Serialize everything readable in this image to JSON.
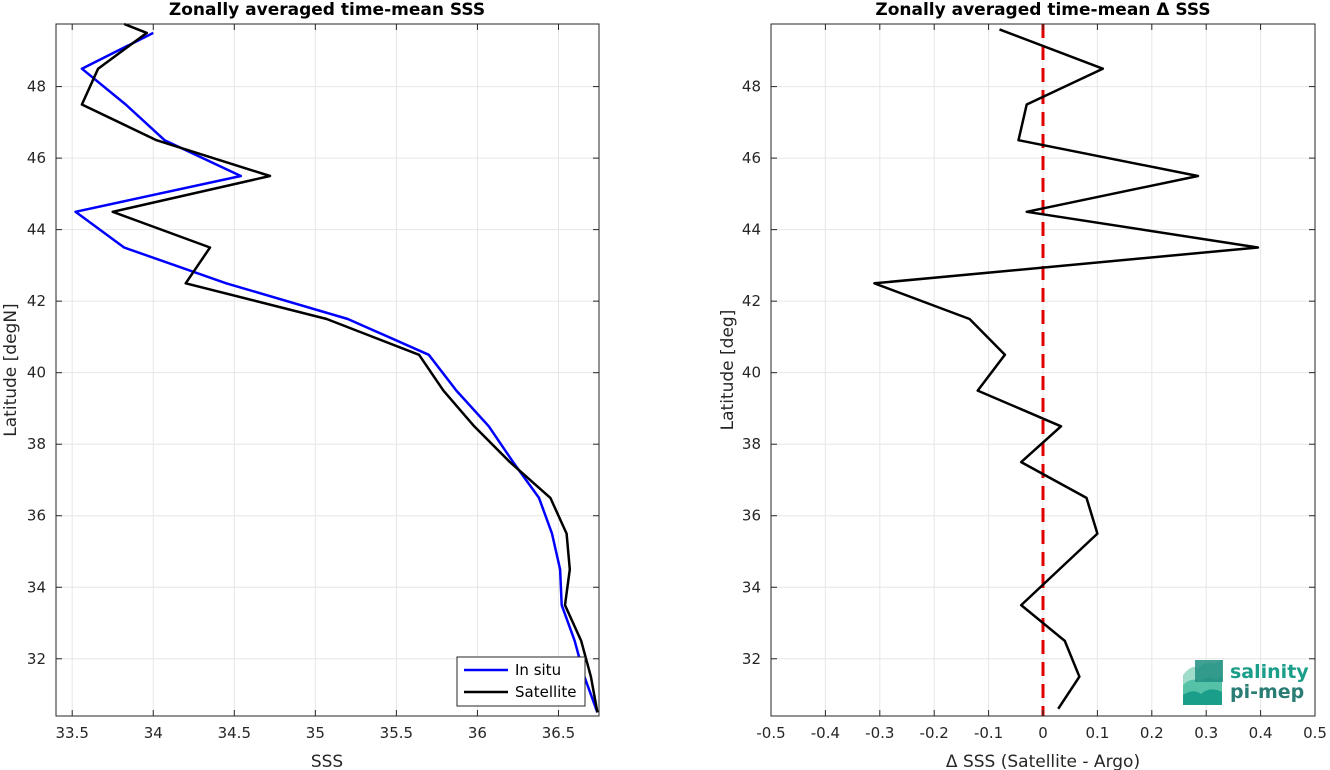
{
  "chart_data": [
    {
      "type": "line",
      "title": "Zonally averaged time-mean SSS",
      "xlabel": "SSS",
      "ylabel": "Latitude [degN]",
      "xlim": [
        33.4,
        36.75
      ],
      "ylim": [
        30.4,
        49.75
      ],
      "xticks": [
        33.5,
        34,
        34.5,
        35,
        35.5,
        36,
        36.5
      ],
      "xtick_labels": [
        "33.5",
        "34",
        "34.5",
        "35",
        "35.5",
        "36",
        "36.5"
      ],
      "yticks": [
        32,
        34,
        36,
        38,
        40,
        42,
        44,
        46,
        48
      ],
      "ytick_labels": [
        "32",
        "34",
        "36",
        "38",
        "40",
        "42",
        "44",
        "46",
        "48"
      ],
      "grid": true,
      "legend": "bottom-right",
      "series": [
        {
          "name": "In situ",
          "color": "#0000ff",
          "points": [
            [
              34.0,
              49.5
            ],
            [
              33.56,
              48.5
            ],
            [
              33.83,
              47.5
            ],
            [
              34.07,
              46.5
            ],
            [
              34.54,
              45.5
            ],
            [
              33.52,
              44.5
            ],
            [
              33.82,
              43.5
            ],
            [
              34.45,
              42.5
            ],
            [
              35.2,
              41.5
            ],
            [
              35.7,
              40.5
            ],
            [
              35.87,
              39.5
            ],
            [
              36.07,
              38.5
            ],
            [
              36.22,
              37.5
            ],
            [
              36.38,
              36.5
            ],
            [
              36.46,
              35.5
            ],
            [
              36.51,
              34.5
            ],
            [
              36.52,
              33.5
            ],
            [
              36.6,
              32.5
            ],
            [
              36.66,
              31.5
            ],
            [
              36.74,
              30.5
            ]
          ]
        },
        {
          "name": "Satellite",
          "color": "#000000",
          "points": [
            [
              33.82,
              49.75
            ],
            [
              33.96,
              49.5
            ],
            [
              33.66,
              48.5
            ],
            [
              33.56,
              47.5
            ],
            [
              34.02,
              46.5
            ],
            [
              34.72,
              45.5
            ],
            [
              33.75,
              44.5
            ],
            [
              34.35,
              43.5
            ],
            [
              34.2,
              42.5
            ],
            [
              35.07,
              41.5
            ],
            [
              35.64,
              40.5
            ],
            [
              35.79,
              39.5
            ],
            [
              35.98,
              38.5
            ],
            [
              36.2,
              37.5
            ],
            [
              36.45,
              36.5
            ],
            [
              36.55,
              35.5
            ],
            [
              36.57,
              34.5
            ],
            [
              36.54,
              33.5
            ],
            [
              36.64,
              32.5
            ],
            [
              36.7,
              31.5
            ],
            [
              36.74,
              30.5
            ]
          ]
        }
      ]
    },
    {
      "type": "line",
      "title": "Zonally averaged time-mean Δ SSS",
      "xlabel": "Δ SSS (Satellite - Argo)",
      "ylabel": "Latitude [deg]",
      "xlim": [
        -0.5,
        0.5
      ],
      "ylim": [
        30.4,
        49.75
      ],
      "xticks": [
        -0.5,
        -0.4,
        -0.3,
        -0.2,
        -0.1,
        0,
        0.1,
        0.2,
        0.3,
        0.4,
        0.5
      ],
      "xtick_labels": [
        "-0.5",
        "-0.4",
        "-0.3",
        "-0.2",
        "-0.1",
        "0",
        "0.1",
        "0.2",
        "0.3",
        "0.4",
        "0.5"
      ],
      "yticks": [
        32,
        34,
        36,
        38,
        40,
        42,
        44,
        46,
        48
      ],
      "ytick_labels": [
        "32",
        "34",
        "36",
        "38",
        "40",
        "42",
        "44",
        "46",
        "48"
      ],
      "grid": true,
      "reference_line": {
        "x": 0,
        "color": "#e00000",
        "style": "dashed"
      },
      "series": [
        {
          "color": "#000000",
          "points": [
            [
              -0.08,
              49.6
            ],
            [
              0.11,
              48.5
            ],
            [
              -0.03,
              47.5
            ],
            [
              -0.045,
              46.5
            ],
            [
              0.285,
              45.5
            ],
            [
              -0.03,
              44.5
            ],
            [
              0.395,
              43.5
            ],
            [
              -0.31,
              42.5
            ],
            [
              -0.135,
              41.5
            ],
            [
              -0.07,
              40.5
            ],
            [
              -0.12,
              39.5
            ],
            [
              0.033,
              38.5
            ],
            [
              -0.04,
              37.5
            ],
            [
              0.08,
              36.5
            ],
            [
              0.1,
              35.5
            ],
            [
              0.03,
              34.5
            ],
            [
              -0.04,
              33.5
            ],
            [
              0.04,
              32.5
            ],
            [
              0.067,
              31.5
            ],
            [
              0.028,
              30.6
            ]
          ]
        }
      ]
    }
  ],
  "logo": {
    "line1": "salinity",
    "line2": "pi-mep",
    "color1": "#1a9e8a",
    "color2": "#2a7d75"
  }
}
